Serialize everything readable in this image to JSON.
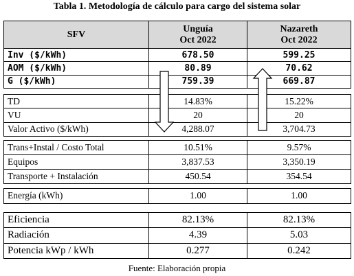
{
  "title": "Tabla 1. Metodología de cálculo para cargo del sistema solar",
  "header": {
    "label": "SFV",
    "columns": [
      {
        "name": "Unguía",
        "date": "Oct 2022"
      },
      {
        "name": "Nazareth",
        "date": "Oct 2022"
      }
    ]
  },
  "groups": [
    [
      [
        "Inv ($/kWh)",
        "678.50",
        "599.25"
      ],
      [
        "AOM ($/kWh)",
        "80.89",
        "70.62"
      ],
      [
        "G ($/kWh)",
        "759.39",
        "669.87"
      ]
    ],
    [
      [
        "TD",
        "14.83%",
        "15.22%"
      ],
      [
        "VU",
        "20",
        "20"
      ],
      [
        "Valor Activo ($/kWh)",
        "4,288.07",
        "3,704.73"
      ]
    ],
    [
      [
        "Trans+Instal / Costo Total",
        "10.51%",
        "9.57%"
      ],
      [
        "Equipos",
        "3,837.53",
        "3,350.19"
      ],
      [
        "Transporte + Instalación",
        "450.54",
        "354.54"
      ]
    ],
    [
      [
        "Energía (kWh)",
        "1.00",
        "1.00"
      ]
    ],
    [
      [
        "Eficiencia",
        "82.13%",
        "82.13%"
      ],
      [
        "Radiación",
        "4.39",
        "5.03"
      ],
      [
        "Potencia kWp / kWh",
        "0.277",
        "0.242"
      ]
    ]
  ],
  "source": "Fuente: Elaboración propia"
}
